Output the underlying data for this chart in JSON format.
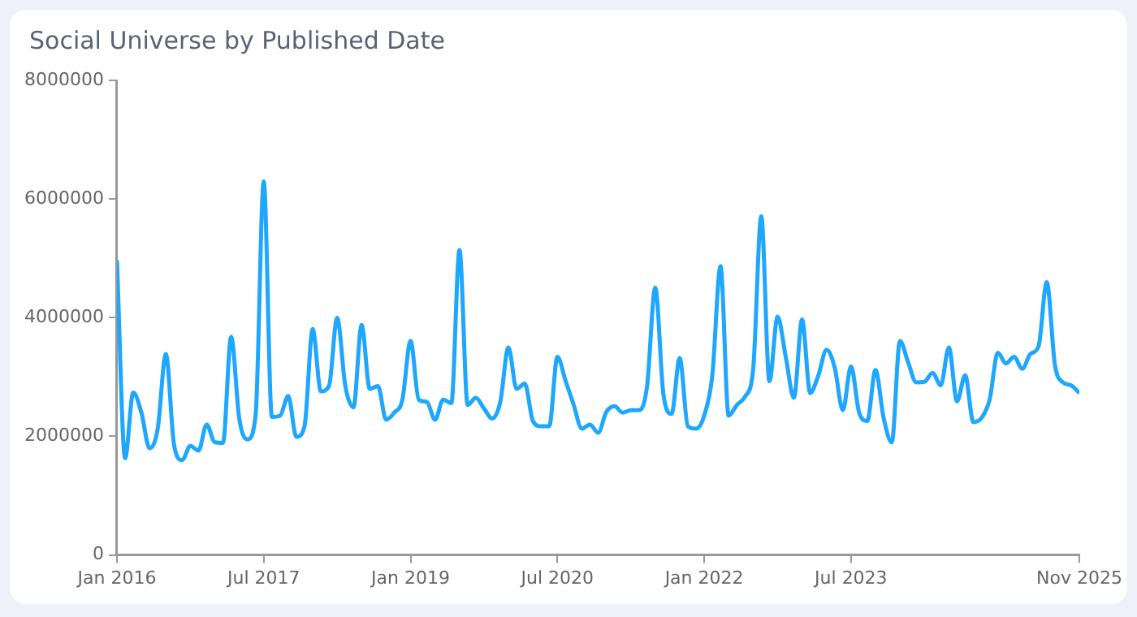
{
  "chart_data": {
    "type": "line",
    "title": "Social Universe by Published Date",
    "x": [
      "2016-01",
      "2016-02",
      "2016-03",
      "2016-04",
      "2016-05",
      "2016-06",
      "2016-07",
      "2016-08",
      "2016-09",
      "2016-10",
      "2016-11",
      "2016-12",
      "2017-01",
      "2017-02",
      "2017-03",
      "2017-04",
      "2017-05",
      "2017-06",
      "2017-07",
      "2017-08",
      "2017-09",
      "2017-10",
      "2017-11",
      "2017-12",
      "2018-01",
      "2018-02",
      "2018-03",
      "2018-04",
      "2018-05",
      "2018-06",
      "2018-07",
      "2018-08",
      "2018-09",
      "2018-10",
      "2018-11",
      "2018-12",
      "2019-01",
      "2019-02",
      "2019-03",
      "2019-04",
      "2019-05",
      "2019-06",
      "2019-07",
      "2019-08",
      "2019-09",
      "2019-10",
      "2019-11",
      "2019-12",
      "2020-01",
      "2020-02",
      "2020-03",
      "2020-04",
      "2020-05",
      "2020-06",
      "2020-07",
      "2020-08",
      "2020-09",
      "2020-10",
      "2020-11",
      "2020-12",
      "2021-01",
      "2021-02",
      "2021-03",
      "2021-04",
      "2021-05",
      "2021-06",
      "2021-07",
      "2021-08",
      "2021-09",
      "2021-10",
      "2021-11",
      "2021-12",
      "2022-01",
      "2022-02",
      "2022-03",
      "2022-04",
      "2022-05",
      "2022-06",
      "2022-07",
      "2022-08",
      "2022-09",
      "2022-10",
      "2022-11",
      "2022-12",
      "2023-01",
      "2023-02",
      "2023-03",
      "2023-04",
      "2023-05",
      "2023-06",
      "2023-07",
      "2023-08",
      "2023-09",
      "2023-10",
      "2023-11",
      "2023-12",
      "2024-01",
      "2024-02",
      "2024-03",
      "2024-04",
      "2024-05",
      "2024-06",
      "2024-07",
      "2024-08",
      "2024-09",
      "2024-10",
      "2024-11",
      "2024-12",
      "2025-01",
      "2025-02",
      "2025-03",
      "2025-04",
      "2025-05",
      "2025-06",
      "2025-07",
      "2025-08",
      "2025-09",
      "2025-10",
      "2025-11"
    ],
    "series": [
      {
        "color": "#1ea7fd",
        "values": [
          4970000,
          1630000,
          2740000,
          2400000,
          1800000,
          2130000,
          3390000,
          1860000,
          1600000,
          1840000,
          1760000,
          2200000,
          1900000,
          1890000,
          3680000,
          2300000,
          1950000,
          2350000,
          6300000,
          2330000,
          2350000,
          2680000,
          1990000,
          2170000,
          3810000,
          2760000,
          2850000,
          4000000,
          2850000,
          2490000,
          3880000,
          2800000,
          2850000,
          2280000,
          2400000,
          2620000,
          3610000,
          2620000,
          2580000,
          2280000,
          2620000,
          2560000,
          5140000,
          2530000,
          2650000,
          2470000,
          2300000,
          2580000,
          3500000,
          2800000,
          2890000,
          2260000,
          2170000,
          2170000,
          3340000,
          2940000,
          2530000,
          2130000,
          2200000,
          2060000,
          2410000,
          2510000,
          2400000,
          2440000,
          2440000,
          2850000,
          4510000,
          2710000,
          2380000,
          3320000,
          2170000,
          2130000,
          2350000,
          3030000,
          4870000,
          2350000,
          2530000,
          2670000,
          3120000,
          5710000,
          2930000,
          4020000,
          3340000,
          2650000,
          3970000,
          2730000,
          3030000,
          3460000,
          3160000,
          2440000,
          3180000,
          2400000,
          2260000,
          3120000,
          2310000,
          1900000,
          3610000,
          3250000,
          2910000,
          2920000,
          3070000,
          2860000,
          3500000,
          2590000,
          3030000,
          2240000,
          2310000,
          2620000,
          3410000,
          3230000,
          3340000,
          3140000,
          3390000,
          3520000,
          4600000,
          3210000,
          2910000,
          2860000,
          2730000
        ]
      }
    ],
    "xlim": [
      "2016-01",
      "2025-11"
    ],
    "xticks": [
      {
        "value": "2016-01",
        "label": "Jan 2016"
      },
      {
        "value": "2017-07",
        "label": "Jul 2017"
      },
      {
        "value": "2019-01",
        "label": "Jan 2019"
      },
      {
        "value": "2020-07",
        "label": "Jul 2020"
      },
      {
        "value": "2022-01",
        "label": "Jan 2022"
      },
      {
        "value": "2023-07",
        "label": "Jul 2023"
      },
      {
        "value": "2025-11",
        "label": "Nov 2025"
      }
    ],
    "ylim": [
      0,
      8000000
    ],
    "yticks": [
      0,
      2000000,
      4000000,
      6000000,
      8000000
    ],
    "grid": false,
    "legend": false,
    "marker": "none",
    "line_style": "solid"
  }
}
